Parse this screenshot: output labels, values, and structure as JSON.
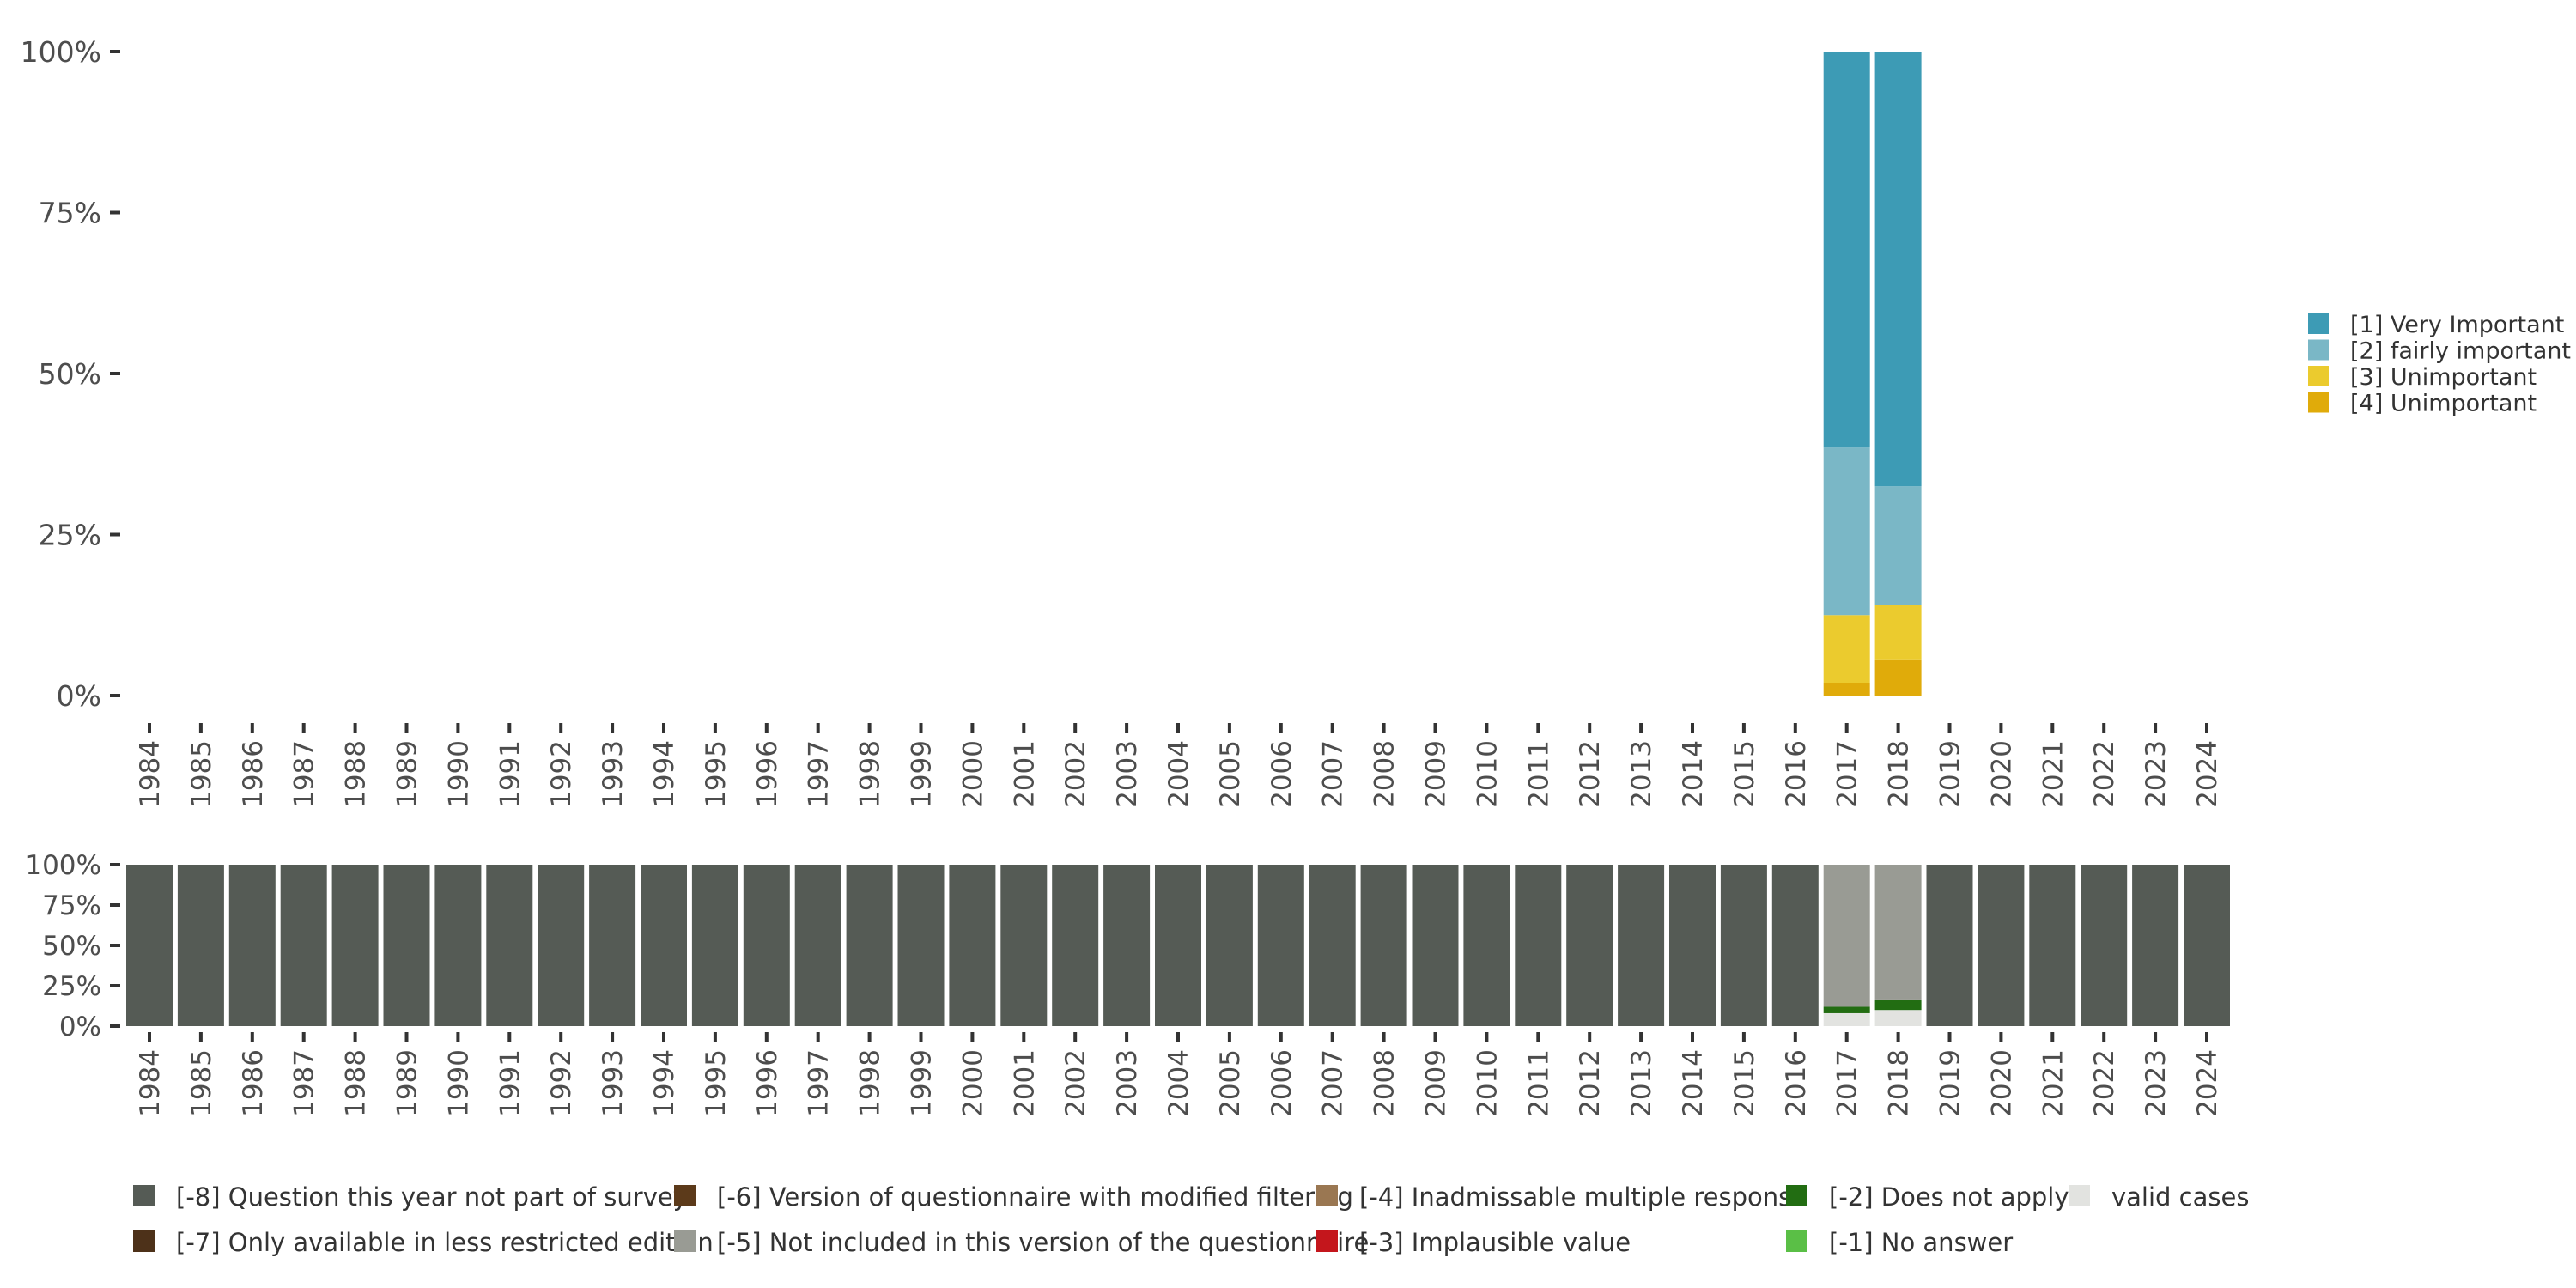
{
  "chart_data": [
    {
      "type": "bar",
      "stacked": true,
      "categories": [
        "1984",
        "1985",
        "1986",
        "1987",
        "1988",
        "1989",
        "1990",
        "1991",
        "1992",
        "1993",
        "1994",
        "1995",
        "1996",
        "1997",
        "1998",
        "1999",
        "2000",
        "2001",
        "2002",
        "2003",
        "2004",
        "2005",
        "2006",
        "2007",
        "2008",
        "2009",
        "2010",
        "2011",
        "2012",
        "2013",
        "2014",
        "2015",
        "2016",
        "2017",
        "2018",
        "2019",
        "2020",
        "2021",
        "2022",
        "2023",
        "2024"
      ],
      "y_ticks": [
        "0%",
        "25%",
        "50%",
        "75%",
        "100%"
      ],
      "ylim": [
        0,
        100
      ],
      "legend_position": "right",
      "series": [
        {
          "name": "[4] Unimportant",
          "color": "#e0ab0a",
          "values": {
            "2017": 2,
            "2018": 5.5
          }
        },
        {
          "name": "[3] Unimportant",
          "color": "#ebcb2e",
          "values": {
            "2017": 10.5,
            "2018": 8.5
          }
        },
        {
          "name": "[2] fairly important",
          "color": "#7ab7c6",
          "values": {
            "2017": 26,
            "2018": 18.5
          }
        },
        {
          "name": "[1] Very Important",
          "color": "#3d9bb5",
          "values": {
            "2017": 61.5,
            "2018": 67.5
          }
        }
      ],
      "legend_order": [
        "[1] Very Important",
        "[2] fairly important",
        "[3] Unimportant",
        "[4] Unimportant"
      ]
    },
    {
      "type": "bar",
      "stacked": true,
      "categories": [
        "1984",
        "1985",
        "1986",
        "1987",
        "1988",
        "1989",
        "1990",
        "1991",
        "1992",
        "1993",
        "1994",
        "1995",
        "1996",
        "1997",
        "1998",
        "1999",
        "2000",
        "2001",
        "2002",
        "2003",
        "2004",
        "2005",
        "2006",
        "2007",
        "2008",
        "2009",
        "2010",
        "2011",
        "2012",
        "2013",
        "2014",
        "2015",
        "2016",
        "2017",
        "2018",
        "2019",
        "2020",
        "2021",
        "2022",
        "2023",
        "2024"
      ],
      "y_ticks": [
        "0%",
        "25%",
        "50%",
        "75%",
        "100%"
      ],
      "ylim": [
        0,
        100
      ],
      "legend_position": "bottom",
      "default_series": "[-8] Question this year not part of survey",
      "series": [
        {
          "name": "valid cases",
          "color": "#e2e3e0",
          "values": {
            "2017": 8,
            "2018": 10
          }
        },
        {
          "name": "[-2] Does not apply",
          "color": "#226d12",
          "values": {
            "2017": 4,
            "2018": 6
          }
        },
        {
          "name": "[-5] Not included in this version of the questionnaire",
          "color": "#999b94",
          "values": {
            "2017": 88,
            "2018": 84
          }
        },
        {
          "name": "[-8] Question this year not part of survey",
          "color": "#555b55",
          "values": {}
        }
      ],
      "legend_rows": [
        [
          {
            "name": "[-8] Question this year not part of survey",
            "color": "#555b55"
          },
          {
            "name": "[-6] Version of questionnaire with modified filtering",
            "color": "#5c3a1a"
          },
          {
            "name": "[-4] Inadmissable multiple response",
            "color": "#9a7752"
          },
          {
            "name": "[-2] Does not apply",
            "color": "#226d12"
          },
          {
            "name": "valid cases",
            "color": "#e2e3e0"
          }
        ],
        [
          {
            "name": "[-7] Only available in less restricted edition",
            "color": "#4d3119"
          },
          {
            "name": "[-5] Not included in this version of the questionnaire",
            "color": "#999b94"
          },
          {
            "name": "[-3] Implausible value",
            "color": "#c4161c"
          },
          {
            "name": "[-1] No answer",
            "color": "#5abf46"
          }
        ]
      ]
    }
  ]
}
